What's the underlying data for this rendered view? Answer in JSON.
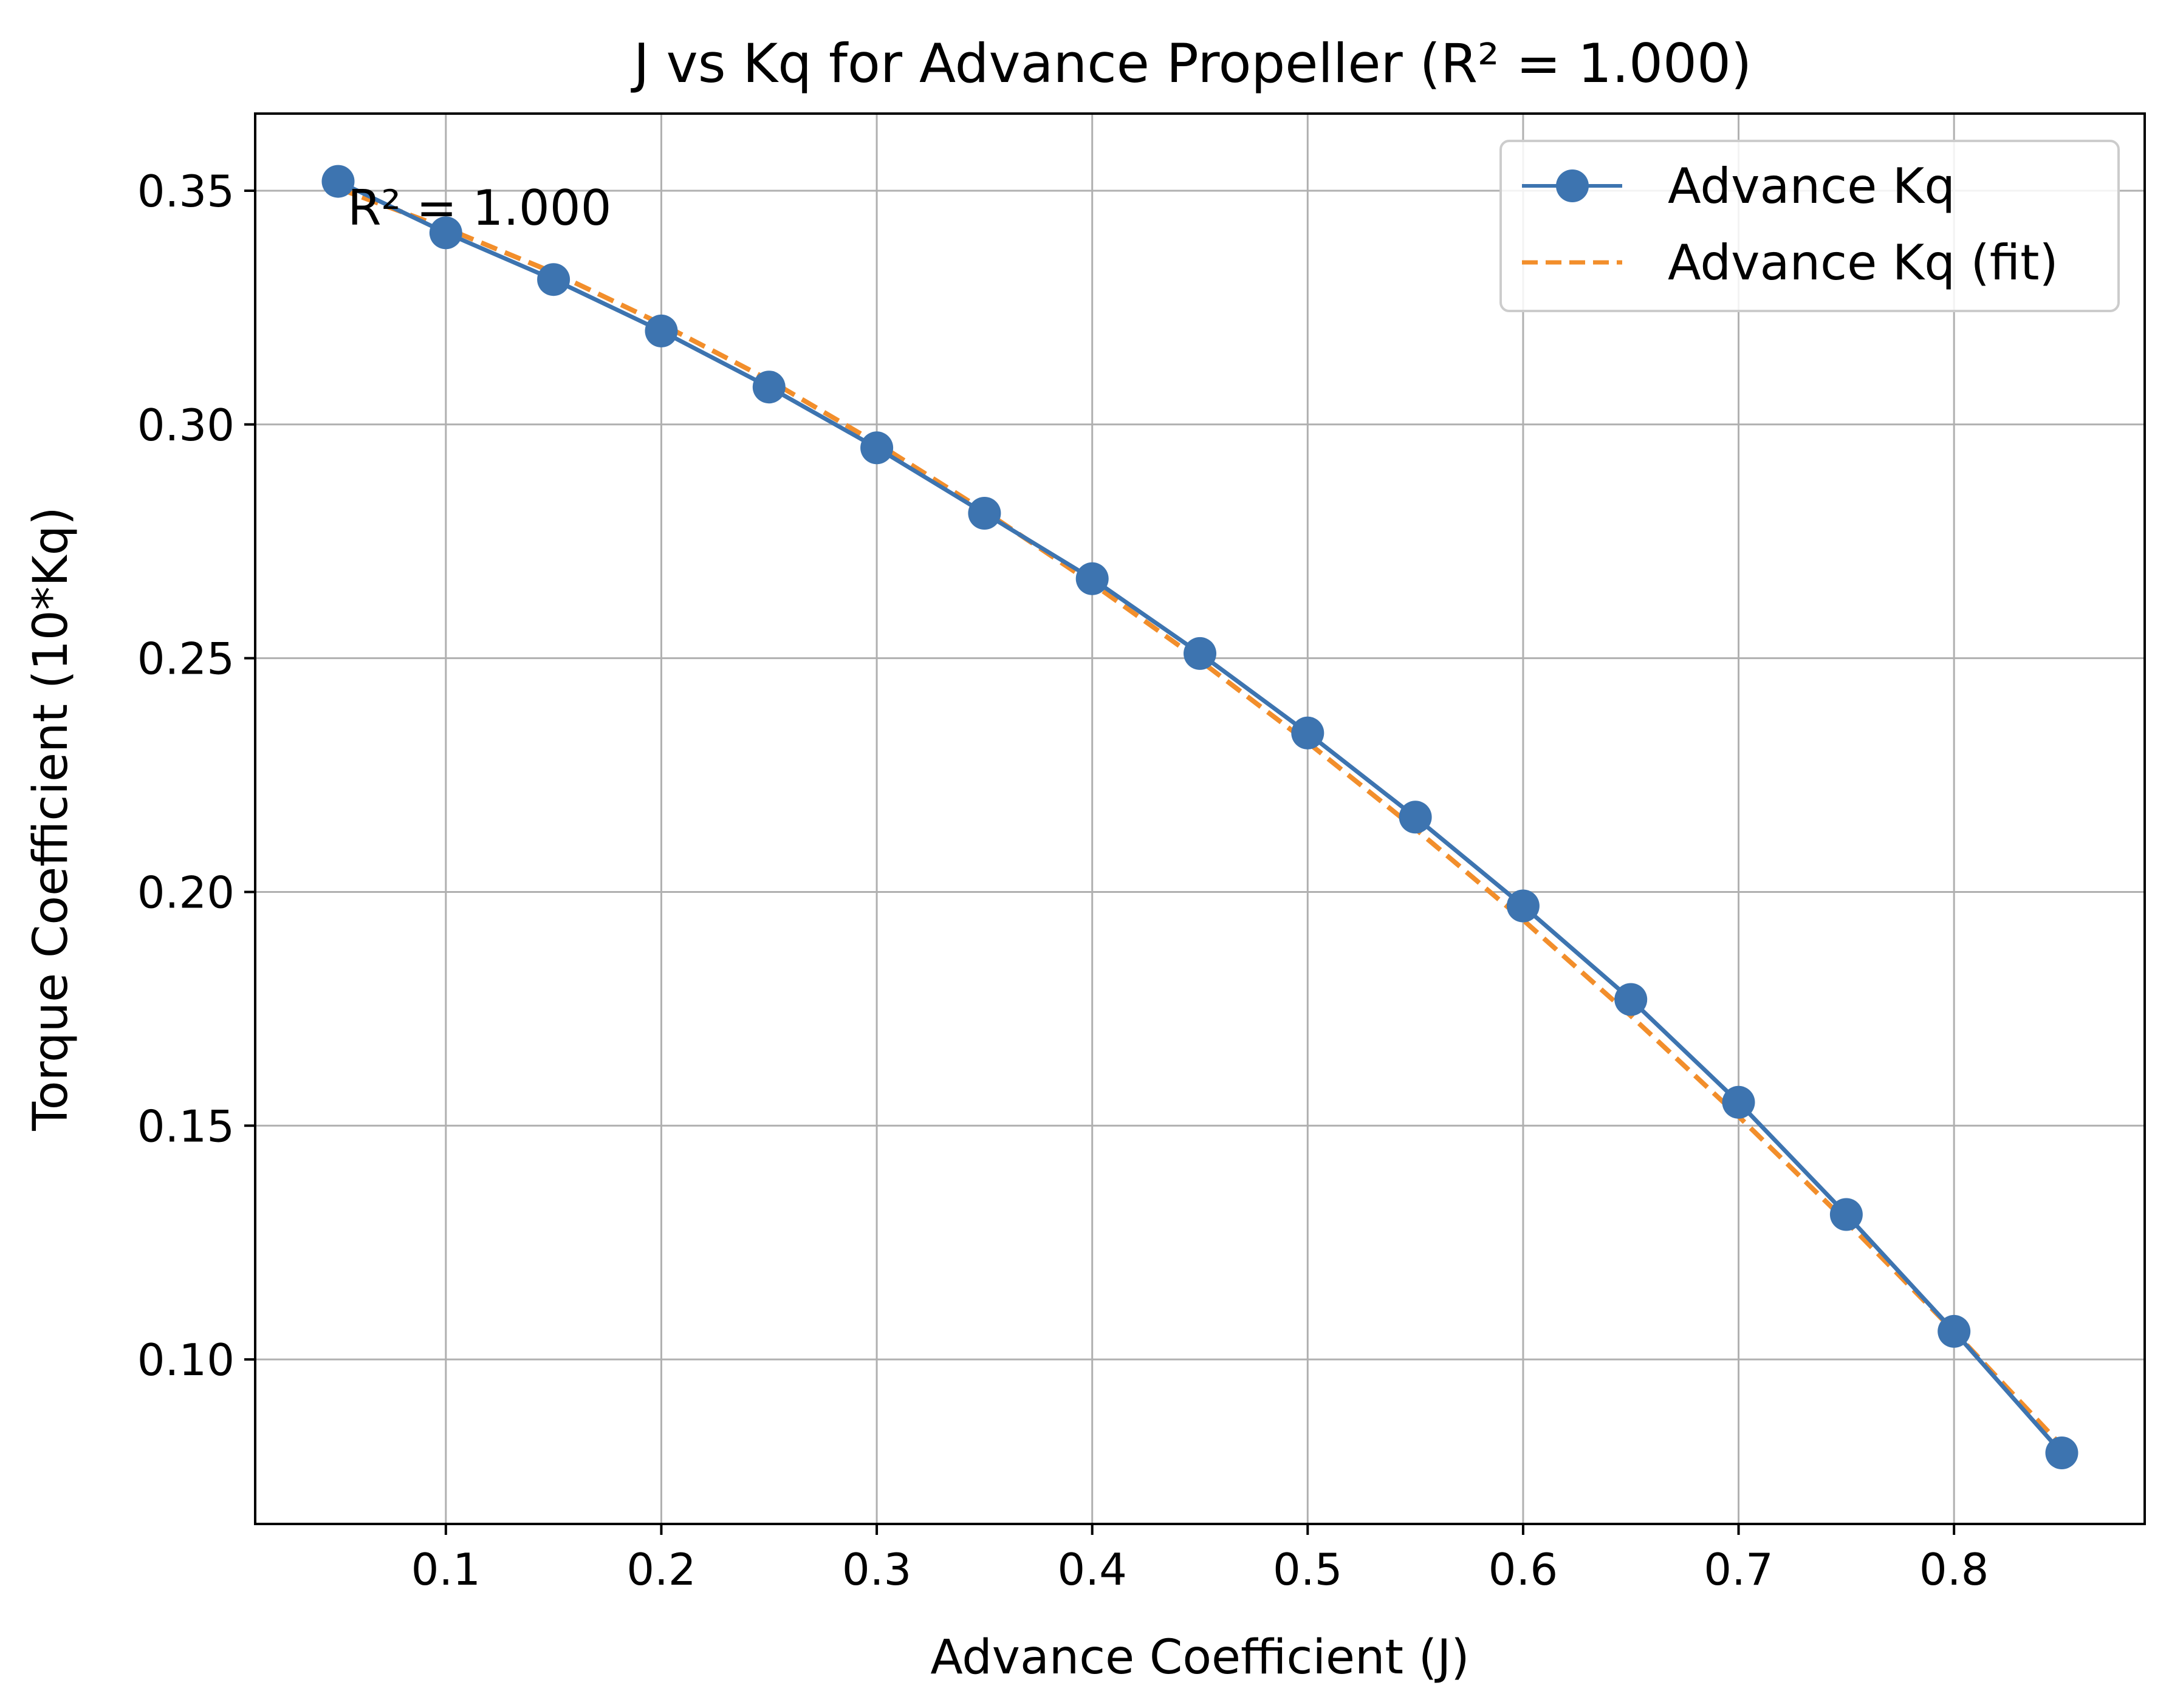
{
  "chart_data": {
    "type": "line",
    "title": "J vs Kq for Advance Propeller (R² = 1.000)",
    "xlabel": "Advance Coefficient (J)",
    "ylabel": "Torque Coefficient (10*Kq)",
    "xlim": [
      0.0115,
      0.8885
    ],
    "ylim": [
      0.0648,
      0.3665
    ],
    "xticks": [
      0.1,
      0.2,
      0.3,
      0.4,
      0.5,
      0.6,
      0.7,
      0.8
    ],
    "xtick_labels": [
      "0.1",
      "0.2",
      "0.3",
      "0.4",
      "0.5",
      "0.6",
      "0.7",
      "0.8"
    ],
    "yticks": [
      0.1,
      0.15,
      0.2,
      0.25,
      0.3,
      0.35
    ],
    "ytick_labels": [
      "0.10",
      "0.15",
      "0.20",
      "0.25",
      "0.30",
      "0.35"
    ],
    "grid": true,
    "legend_position": "top-right",
    "annotation": "R² = 1.000",
    "x": [
      0.05,
      0.1,
      0.15,
      0.2,
      0.25,
      0.3,
      0.35,
      0.4,
      0.45,
      0.5,
      0.55,
      0.6,
      0.65,
      0.7,
      0.75,
      0.8,
      0.85
    ],
    "series": [
      {
        "name": "Advance Kq",
        "style": "solid-with-markers",
        "color": "#3d74b0",
        "values": [
          0.352,
          0.341,
          0.331,
          0.32,
          0.308,
          0.295,
          0.281,
          0.267,
          0.251,
          0.234,
          0.216,
          0.197,
          0.177,
          0.155,
          0.131,
          0.106,
          0.08
        ]
      },
      {
        "name": "Advance Kq (fit)",
        "style": "dashed",
        "color": "#f28e2b",
        "values": [
          0.3505,
          0.342,
          0.3325,
          0.3215,
          0.3095,
          0.296,
          0.2815,
          0.266,
          0.2495,
          0.232,
          0.2135,
          0.194,
          0.1735,
          0.152,
          0.1295,
          0.106,
          0.0815
        ]
      }
    ]
  }
}
